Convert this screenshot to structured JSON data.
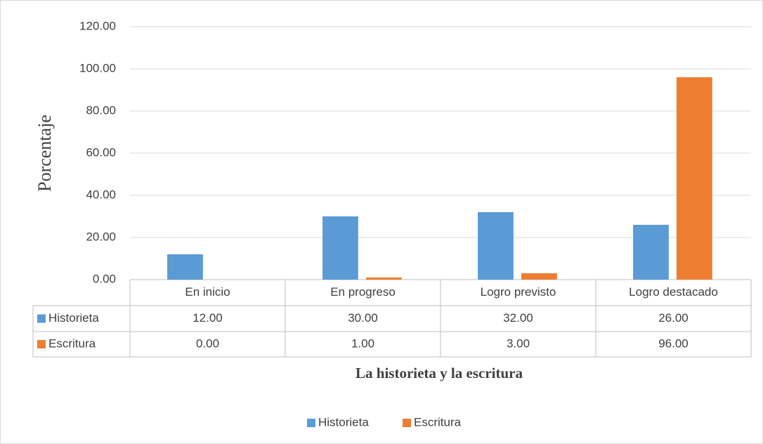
{
  "chart_data": {
    "type": "bar",
    "y_label": "Porcentaje",
    "x_label": "La historieta y la escritura",
    "categories": [
      "En inicio",
      "En progreso",
      "Logro previsto",
      "Logro destacado"
    ],
    "series": [
      {
        "name": "Historieta",
        "color": "#5b9bd5",
        "values": [
          12,
          30,
          32,
          26
        ],
        "value_labels": [
          "12.00",
          "30.00",
          "32.00",
          "26.00"
        ]
      },
      {
        "name": "Escritura",
        "color": "#ed7d31",
        "values": [
          0,
          1,
          3,
          96
        ],
        "value_labels": [
          "0.00",
          "1.00",
          "3.00",
          "96.00"
        ]
      }
    ],
    "ylim": [
      0,
      120
    ],
    "yticks": [
      {
        "value": 0,
        "label": "0.00"
      },
      {
        "value": 20,
        "label": "20.00"
      },
      {
        "value": 40,
        "label": "40.00"
      },
      {
        "value": 60,
        "label": "60.00"
      },
      {
        "value": 80,
        "label": "80.00"
      },
      {
        "value": 100,
        "label": "100.00"
      },
      {
        "value": 120,
        "label": "120.00"
      }
    ],
    "grid": true,
    "legend": "bottom"
  }
}
